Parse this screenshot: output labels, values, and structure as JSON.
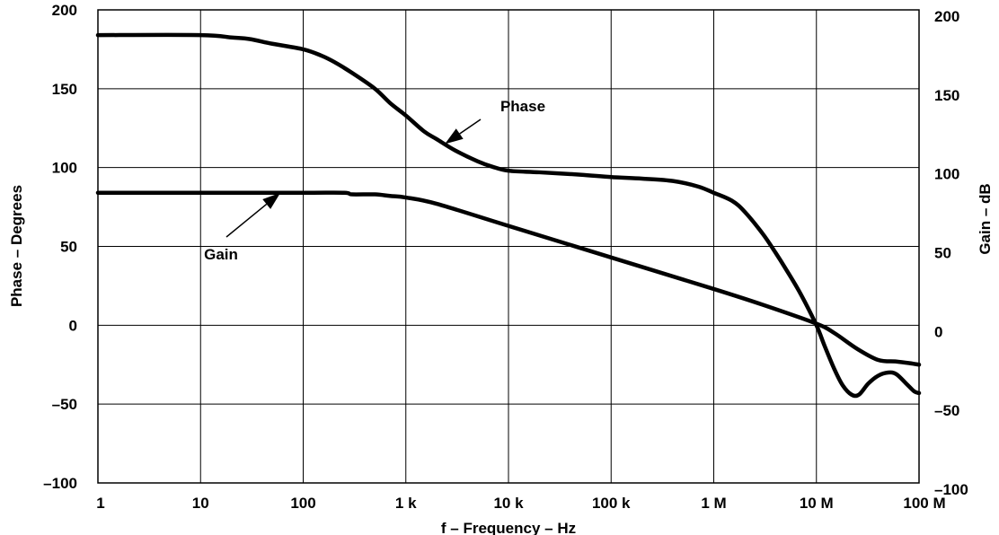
{
  "chart_data": {
    "type": "line",
    "xlabel": "f – Frequency – Hz",
    "ylabel_left": "Phase – Degrees",
    "ylabel_right": "Gain – dB",
    "x_scale": "log",
    "xlim": [
      1,
      100000000
    ],
    "ylim_left": [
      -100,
      200
    ],
    "ylim_right": [
      -100,
      200
    ],
    "grid": true,
    "x_ticks": [
      {
        "value": 1,
        "label": "1"
      },
      {
        "value": 10,
        "label": "10"
      },
      {
        "value": 100,
        "label": "100"
      },
      {
        "value": 1000,
        "label": "1 k"
      },
      {
        "value": 10000,
        "label": "10 k"
      },
      {
        "value": 100000,
        "label": "100 k"
      },
      {
        "value": 1000000,
        "label": "1 M"
      },
      {
        "value": 10000000,
        "label": "10 M"
      },
      {
        "value": 100000000,
        "label": "100 M"
      }
    ],
    "y_ticks_left": [
      {
        "value": 200,
        "label": "200"
      },
      {
        "value": 150,
        "label": "150"
      },
      {
        "value": 100,
        "label": "100"
      },
      {
        "value": 50,
        "label": "50"
      },
      {
        "value": 0,
        "label": "0"
      },
      {
        "value": -50,
        "label": "–50"
      },
      {
        "value": -100,
        "label": "–100"
      }
    ],
    "y_ticks_right": [
      {
        "value": 200,
        "label": "200"
      },
      {
        "value": 150,
        "label": "150"
      },
      {
        "value": 100,
        "label": "100"
      },
      {
        "value": 50,
        "label": "50"
      },
      {
        "value": 0,
        "label": "0"
      },
      {
        "value": -50,
        "label": "–50"
      },
      {
        "value": -100,
        "label": "–100"
      }
    ],
    "series": [
      {
        "name": "Phase",
        "axis": "left",
        "points": [
          [
            1,
            184
          ],
          [
            10,
            184
          ],
          [
            20,
            182.5
          ],
          [
            30,
            181.5
          ],
          [
            50,
            178.5
          ],
          [
            100,
            175
          ],
          [
            150,
            171
          ],
          [
            200,
            167
          ],
          [
            300,
            160
          ],
          [
            500,
            150
          ],
          [
            700,
            141
          ],
          [
            1000,
            133
          ],
          [
            1500,
            123
          ],
          [
            2000,
            118
          ],
          [
            3000,
            111
          ],
          [
            5000,
            104
          ],
          [
            7000,
            100.5
          ],
          [
            10000,
            98
          ],
          [
            20000,
            97
          ],
          [
            50000,
            95.5
          ],
          [
            100000,
            94
          ],
          [
            200000,
            93
          ],
          [
            400000,
            91.5
          ],
          [
            700000,
            88
          ],
          [
            1000000,
            84
          ],
          [
            1500000,
            79
          ],
          [
            2000000,
            72
          ],
          [
            3000000,
            58
          ],
          [
            4000000,
            46
          ],
          [
            5000000,
            36
          ],
          [
            7000000,
            20
          ],
          [
            10000000,
            0
          ],
          [
            12000000,
            -13
          ],
          [
            15000000,
            -28
          ],
          [
            18000000,
            -38
          ],
          [
            22000000,
            -44
          ],
          [
            26000000,
            -44
          ],
          [
            32000000,
            -37
          ],
          [
            40000000,
            -32
          ],
          [
            50000000,
            -30
          ],
          [
            60000000,
            -31
          ],
          [
            75000000,
            -37
          ],
          [
            90000000,
            -42
          ],
          [
            100000000,
            -43
          ]
        ]
      },
      {
        "name": "Gain",
        "axis": "right",
        "points": [
          [
            1,
            84
          ],
          [
            10,
            84
          ],
          [
            100,
            84
          ],
          [
            250,
            84
          ],
          [
            300,
            83
          ],
          [
            500,
            83
          ],
          [
            700,
            82
          ],
          [
            1000,
            81
          ],
          [
            2000,
            77
          ],
          [
            10000,
            63
          ],
          [
            100000,
            43
          ],
          [
            1000000,
            23
          ],
          [
            3000000,
            13
          ],
          [
            10000000,
            1
          ],
          [
            15000000,
            -5
          ],
          [
            25000000,
            -15
          ],
          [
            40000000,
            -22
          ],
          [
            60000000,
            -23
          ],
          [
            80000000,
            -24
          ],
          [
            100000000,
            -25
          ]
        ]
      }
    ],
    "annotations": [
      {
        "text": "Phase",
        "target_series": "Phase",
        "arrow_to": [
          2400,
          115
        ]
      },
      {
        "text": "Gain",
        "target_series": "Gain",
        "arrow_to": [
          60,
          84
        ]
      }
    ]
  }
}
